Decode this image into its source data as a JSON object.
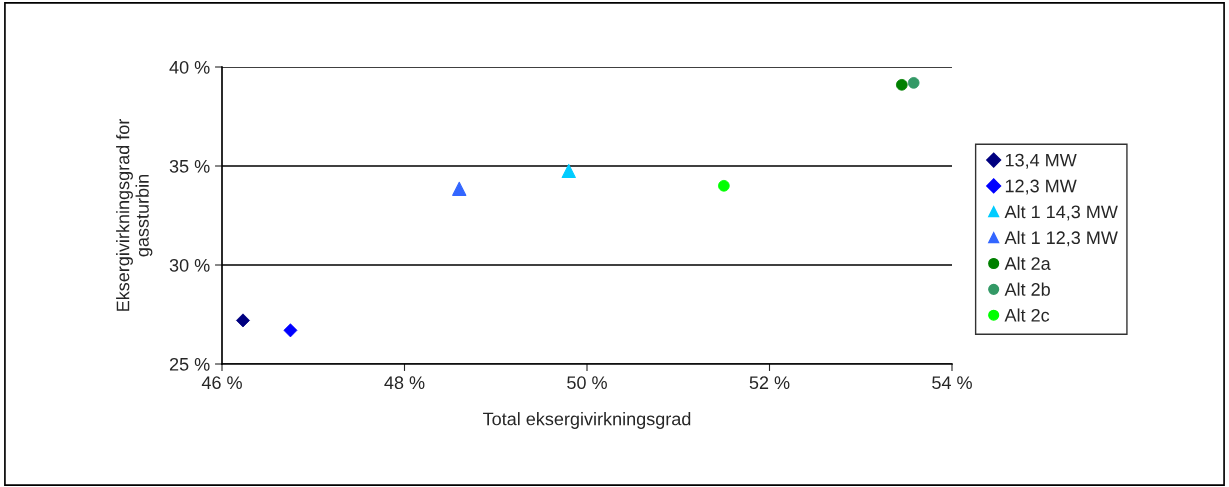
{
  "chart_data": {
    "type": "scatter",
    "xlabel": "Total eksergivirkningsgrad",
    "ylabel": "Eksergivirkningsgrad for\ngassturbin",
    "xlim": [
      46,
      54
    ],
    "xticks": [
      {
        "value": 46,
        "label": "46 %"
      },
      {
        "value": 48,
        "label": "48 %"
      },
      {
        "value": 50,
        "label": "50 %"
      },
      {
        "value": 52,
        "label": "52 %"
      },
      {
        "value": 54,
        "label": "54 %"
      }
    ],
    "ylim": [
      25,
      40
    ],
    "yticks": [
      {
        "value": 25,
        "label": "25 %"
      },
      {
        "value": 30,
        "label": "30 %"
      },
      {
        "value": 35,
        "label": "35 %"
      },
      {
        "value": 40,
        "label": "40 %"
      }
    ],
    "grid": "y",
    "legend": "right",
    "series": [
      {
        "name": "13,4 MW",
        "color": "#000080",
        "marker": "diamond",
        "x": [
          46.23
        ],
        "values": [
          27.2
        ]
      },
      {
        "name": "12,3 MW",
        "color": "#0000ff",
        "marker": "diamond",
        "x": [
          46.75
        ],
        "values": [
          26.7
        ]
      },
      {
        "name": "Alt 1 14,3 MW",
        "color": "#00ccff",
        "marker": "triangle",
        "x": [
          49.8
        ],
        "values": [
          34.75
        ]
      },
      {
        "name": "Alt 1 12,3 MW",
        "color": "#3366ff",
        "marker": "triangle",
        "x": [
          48.6
        ],
        "values": [
          33.85
        ]
      },
      {
        "name": "Alt 2a",
        "color": "#008000",
        "marker": "circle",
        "x": [
          53.45
        ],
        "values": [
          39.1
        ]
      },
      {
        "name": "Alt 2b",
        "color": "#339966",
        "marker": "circle",
        "x": [
          53.58
        ],
        "values": [
          39.2
        ]
      },
      {
        "name": "Alt 2c",
        "color": "#00ff00",
        "marker": "circle",
        "x": [
          51.5
        ],
        "values": [
          34.0
        ]
      }
    ]
  }
}
